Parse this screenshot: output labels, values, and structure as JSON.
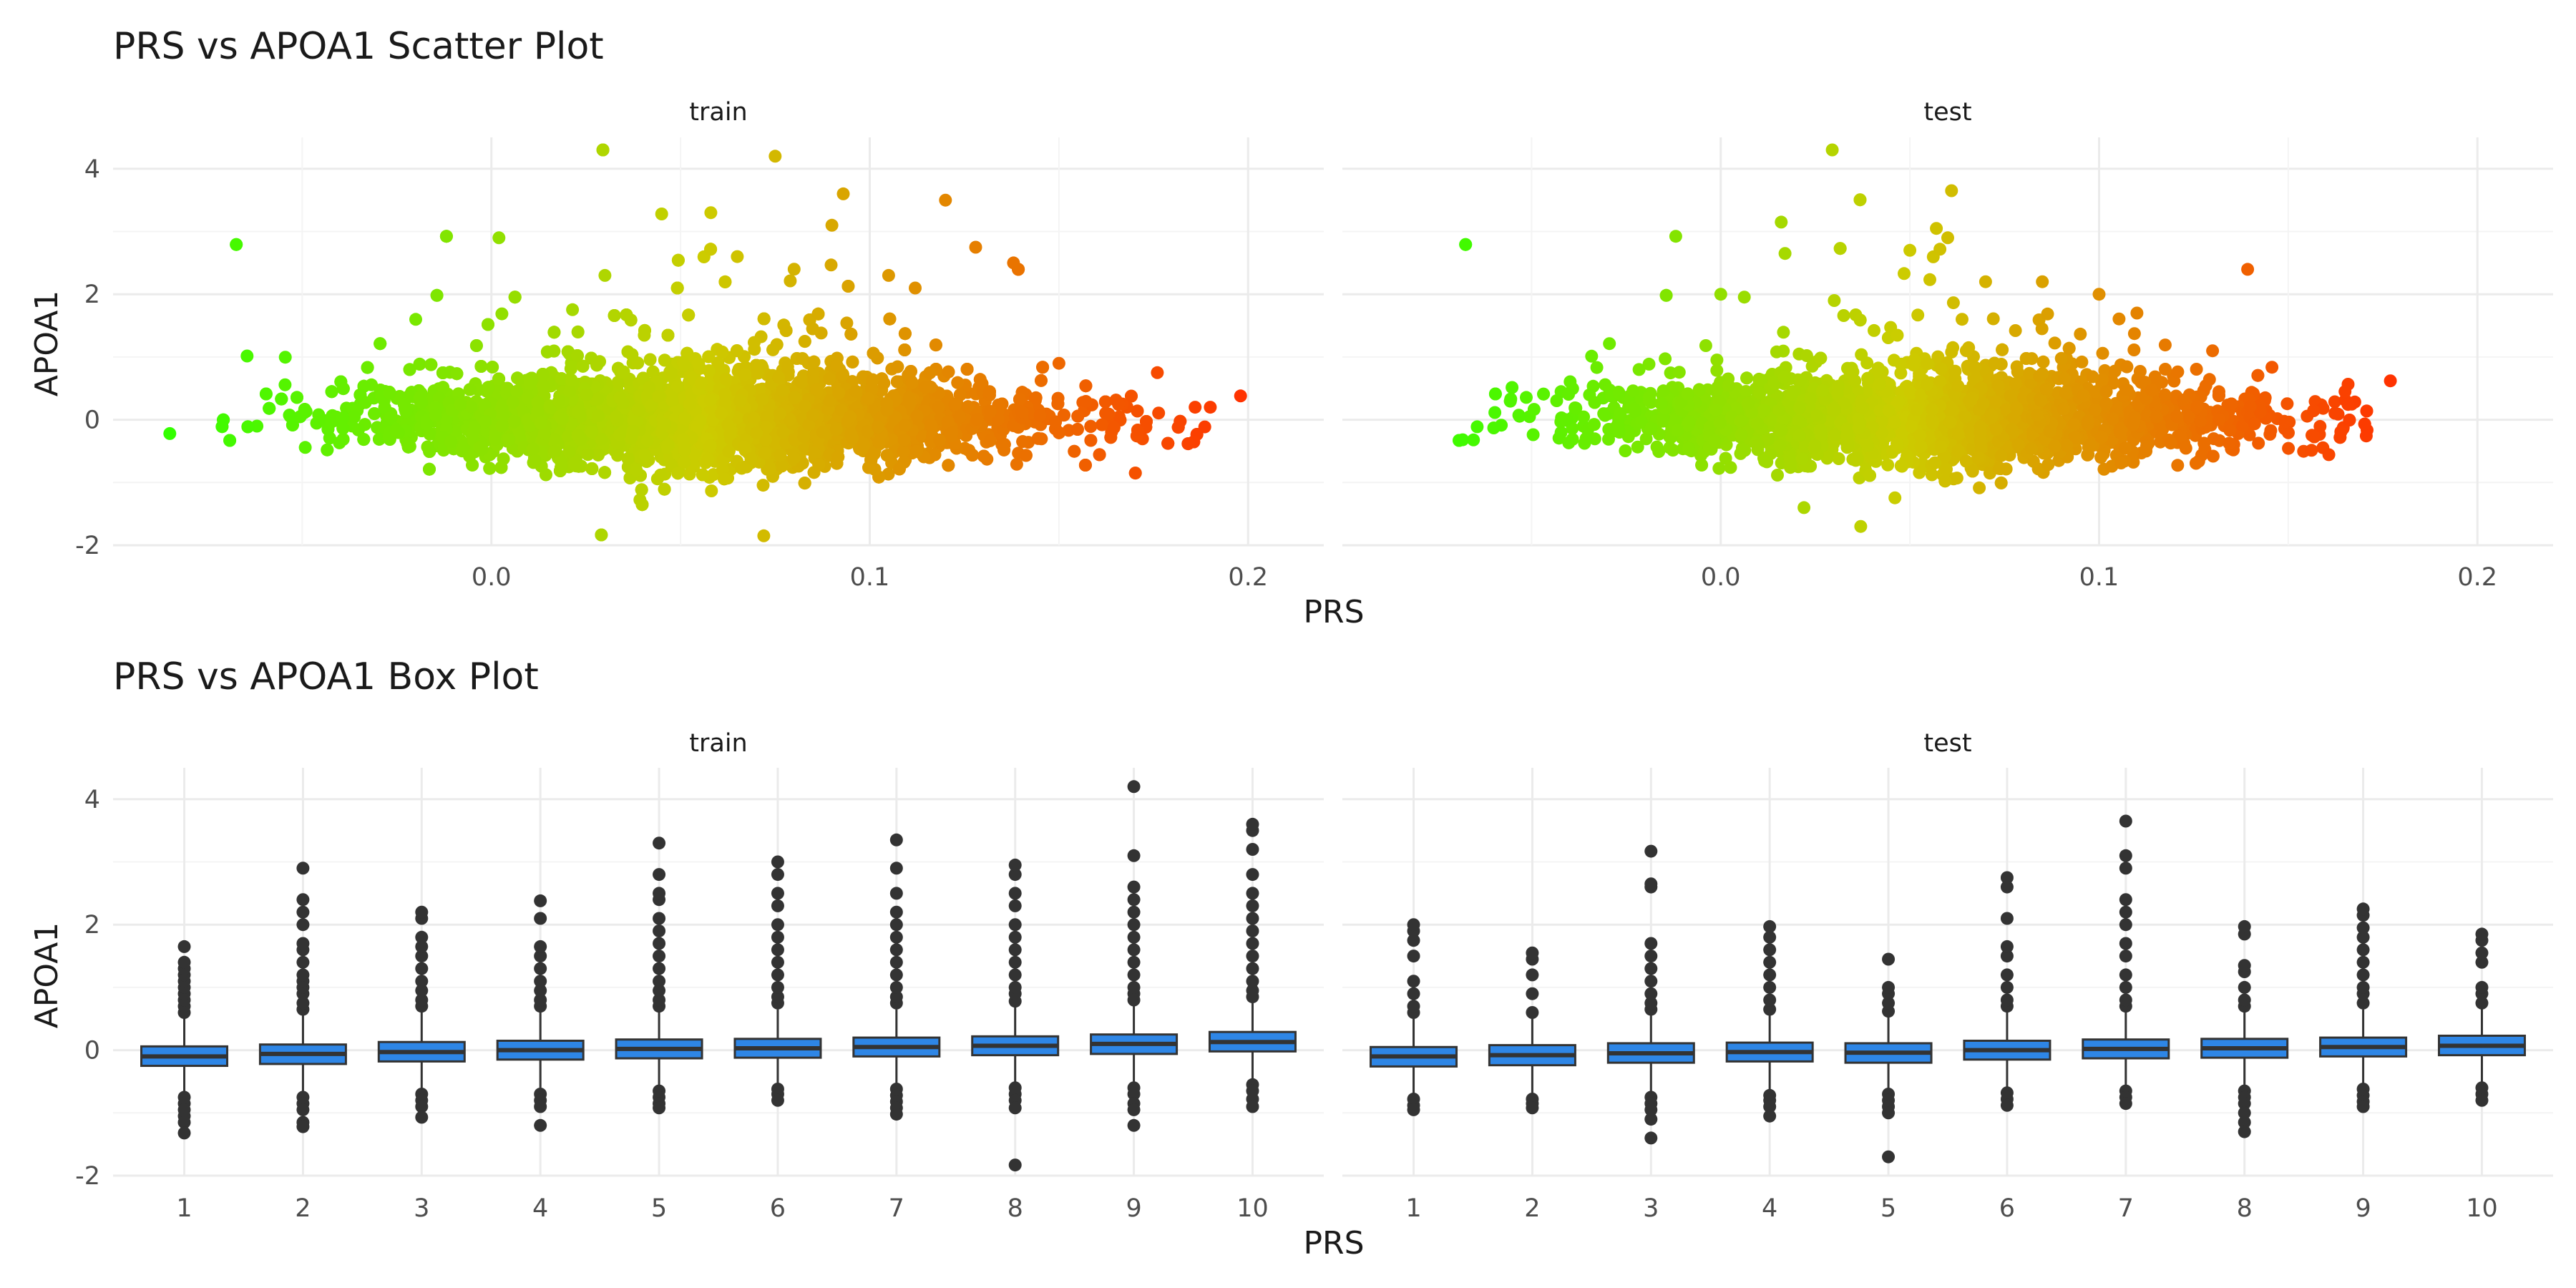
{
  "chart_data": [
    {
      "type": "scatter",
      "title": "PRS vs APOA1 Scatter Plot",
      "xlabel": "PRS",
      "ylabel": "APOA1",
      "xlim": [
        -0.1,
        0.22
      ],
      "ylim": [
        -2.0,
        4.5
      ],
      "xticks": [
        "0.0",
        "0.1",
        "0.2"
      ],
      "xtick_values": [
        0.0,
        0.1,
        0.2
      ],
      "yticks": [
        "-2",
        "0",
        "2",
        "4"
      ],
      "ytick_values": [
        -2,
        0,
        2,
        4
      ],
      "color_scale": [
        "#33ff00",
        "#cccc00",
        "#ff3300"
      ],
      "grid": true,
      "legend": "none",
      "panels": [
        {
          "name": "train",
          "x_range": [
            -0.085,
            0.198
          ],
          "approx_count": 6000,
          "outliers": [
            {
              "x": -0.085,
              "y": -0.22
            },
            {
              "x": 0.198,
              "y": 0.38
            },
            {
              "x": 0.19,
              "y": 0.2
            },
            {
              "x": 0.186,
              "y": 0.2
            },
            {
              "x": 0.075,
              "y": 4.2
            },
            {
              "x": 0.093,
              "y": 3.6
            },
            {
              "x": 0.12,
              "y": 3.5
            },
            {
              "x": 0.058,
              "y": 3.3
            },
            {
              "x": 0.045,
              "y": 3.28
            },
            {
              "x": 0.002,
              "y": 2.9
            },
            {
              "x": 0.09,
              "y": 3.1
            },
            {
              "x": 0.138,
              "y": 2.5
            },
            {
              "x": 0.128,
              "y": 2.75
            },
            {
              "x": 0.105,
              "y": 2.3
            },
            {
              "x": 0.072,
              "y": -1.85
            },
            {
              "x": -0.02,
              "y": 1.6
            },
            {
              "x": 0.112,
              "y": 2.1
            },
            {
              "x": 0.03,
              "y": 2.3
            },
            {
              "x": 0.065,
              "y": 2.6
            },
            {
              "x": 0.08,
              "y": 2.4
            },
            {
              "x": 0.176,
              "y": 0.75
            },
            {
              "x": 0.15,
              "y": 0.9
            }
          ]
        },
        {
          "name": "test",
          "x_range": [
            -0.08,
            0.177
          ],
          "approx_count": 2500,
          "outliers": [
            {
              "x": -0.06,
              "y": -0.13
            },
            {
              "x": 0.177,
              "y": 0.62
            },
            {
              "x": 0.061,
              "y": 3.65
            },
            {
              "x": 0.016,
              "y": 3.15
            },
            {
              "x": 0.057,
              "y": 3.05
            },
            {
              "x": 0.017,
              "y": 2.65
            },
            {
              "x": 0.05,
              "y": 2.7
            },
            {
              "x": 0.06,
              "y": 2.9
            },
            {
              "x": 0.0,
              "y": 2.0
            },
            {
              "x": 0.037,
              "y": -1.7
            },
            {
              "x": 0.07,
              "y": 2.2
            },
            {
              "x": 0.085,
              "y": 2.2
            },
            {
              "x": 0.1,
              "y": 2.0
            },
            {
              "x": 0.11,
              "y": 1.7
            },
            {
              "x": 0.165,
              "y": 0.45
            },
            {
              "x": 0.13,
              "y": 1.1
            },
            {
              "x": 0.03,
              "y": 1.9
            },
            {
              "x": 0.022,
              "y": -1.4
            }
          ]
        }
      ]
    },
    {
      "type": "box",
      "title": "PRS vs APOA1 Box Plot",
      "xlabel": "PRS",
      "ylabel": "APOA1",
      "categories": [
        "1",
        "2",
        "3",
        "4",
        "5",
        "6",
        "7",
        "8",
        "9",
        "10"
      ],
      "ylim": [
        -2.0,
        4.5
      ],
      "yticks": [
        "-2",
        "0",
        "2",
        "4"
      ],
      "ytick_values": [
        -2,
        0,
        2,
        4
      ],
      "box_color": "#2e86e6",
      "outlier_color": "#333333",
      "grid": true,
      "legend": "none",
      "panels": [
        {
          "name": "train",
          "boxes": [
            {
              "q1": -0.25,
              "median": -0.1,
              "q3": 0.06,
              "whisker_low": -0.7,
              "whisker_high": 0.55,
              "outliers_high": [
                0.6,
                0.7,
                0.8,
                0.9,
                1.0,
                1.1,
                1.2,
                1.3,
                1.4,
                1.65
              ],
              "outliers_low": [
                -0.75,
                -0.85,
                -0.95,
                -1.05,
                -1.15,
                -1.32
              ]
            },
            {
              "q1": -0.22,
              "median": -0.06,
              "q3": 0.09,
              "whisker_low": -0.68,
              "whisker_high": 0.58,
              "outliers_high": [
                0.65,
                0.75,
                0.9,
                1.0,
                1.1,
                1.2,
                1.4,
                1.6,
                1.7,
                2.0,
                2.2,
                2.4,
                2.9
              ],
              "outliers_low": [
                -0.75,
                -0.85,
                -0.95,
                -1.15,
                -1.22
              ]
            },
            {
              "q1": -0.18,
              "median": -0.03,
              "q3": 0.13,
              "whisker_low": -0.62,
              "whisker_high": 0.6,
              "outliers_high": [
                0.7,
                0.8,
                0.95,
                1.1,
                1.3,
                1.5,
                1.65,
                1.8,
                2.1,
                2.2
              ],
              "outliers_low": [
                -0.7,
                -0.8,
                -0.9,
                -1.07
              ]
            },
            {
              "q1": -0.15,
              "median": 0.0,
              "q3": 0.15,
              "whisker_low": -0.6,
              "whisker_high": 0.6,
              "outliers_high": [
                0.7,
                0.8,
                0.95,
                1.1,
                1.3,
                1.5,
                1.65,
                2.1,
                2.38
              ],
              "outliers_low": [
                -0.7,
                -0.8,
                -0.9,
                -1.2
              ]
            },
            {
              "q1": -0.13,
              "median": 0.02,
              "q3": 0.17,
              "whisker_low": -0.58,
              "whisker_high": 0.62,
              "outliers_high": [
                0.7,
                0.8,
                0.95,
                1.1,
                1.3,
                1.5,
                1.7,
                1.9,
                2.1,
                2.4,
                2.5,
                2.8,
                3.3
              ],
              "outliers_low": [
                -0.65,
                -0.75,
                -0.85,
                -0.92
              ]
            },
            {
              "q1": -0.12,
              "median": 0.03,
              "q3": 0.18,
              "whisker_low": -0.55,
              "whisker_high": 0.65,
              "outliers_high": [
                0.75,
                0.85,
                1.0,
                1.2,
                1.4,
                1.6,
                1.8,
                2.0,
                2.3,
                2.5,
                2.8,
                3.0
              ],
              "outliers_low": [
                -0.62,
                -0.7,
                -0.8
              ]
            },
            {
              "q1": -0.1,
              "median": 0.05,
              "q3": 0.2,
              "whisker_low": -0.55,
              "whisker_high": 0.65,
              "outliers_high": [
                0.75,
                0.85,
                1.0,
                1.2,
                1.4,
                1.6,
                1.8,
                2.0,
                2.2,
                2.5,
                2.9,
                3.35
              ],
              "outliers_low": [
                -0.62,
                -0.72,
                -0.82,
                -0.92,
                -1.02
              ]
            },
            {
              "q1": -0.08,
              "median": 0.07,
              "q3": 0.22,
              "whisker_low": -0.53,
              "whisker_high": 0.68,
              "outliers_high": [
                0.78,
                0.9,
                1.0,
                1.2,
                1.4,
                1.6,
                1.8,
                2.0,
                2.3,
                2.5,
                2.8,
                2.95
              ],
              "outliers_low": [
                -0.6,
                -0.7,
                -0.8,
                -0.92,
                -1.83
              ]
            },
            {
              "q1": -0.06,
              "median": 0.1,
              "q3": 0.25,
              "whisker_low": -0.5,
              "whisker_high": 0.72,
              "outliers_high": [
                0.8,
                0.9,
                1.0,
                1.2,
                1.4,
                1.6,
                1.8,
                2.0,
                2.2,
                2.4,
                2.6,
                3.1,
                4.2
              ],
              "outliers_low": [
                -0.6,
                -0.7,
                -0.85,
                -0.95,
                -1.2
              ]
            },
            {
              "q1": -0.02,
              "median": 0.13,
              "q3": 0.29,
              "whisker_low": -0.45,
              "whisker_high": 0.76,
              "outliers_high": [
                0.85,
                0.95,
                1.1,
                1.3,
                1.5,
                1.7,
                1.9,
                2.1,
                2.3,
                2.5,
                2.8,
                3.2,
                3.5,
                3.6
              ],
              "outliers_low": [
                -0.55,
                -0.65,
                -0.78,
                -0.9
              ]
            }
          ]
        },
        {
          "name": "test",
          "boxes": [
            {
              "q1": -0.26,
              "median": -0.1,
              "q3": 0.05,
              "whisker_low": -0.7,
              "whisker_high": 0.5,
              "outliers_high": [
                0.6,
                0.7,
                0.9,
                1.1,
                1.5,
                1.75,
                1.9,
                2.0
              ],
              "outliers_low": [
                -0.78,
                -0.88,
                -0.95
              ]
            },
            {
              "q1": -0.24,
              "median": -0.08,
              "q3": 0.08,
              "whisker_low": -0.7,
              "whisker_high": 0.5,
              "outliers_high": [
                0.6,
                0.9,
                1.2,
                1.45,
                1.55
              ],
              "outliers_low": [
                -0.78,
                -0.85,
                -0.92
              ]
            },
            {
              "q1": -0.2,
              "median": -0.05,
              "q3": 0.11,
              "whisker_low": -0.65,
              "whisker_high": 0.55,
              "outliers_high": [
                0.65,
                0.75,
                0.9,
                1.1,
                1.3,
                1.5,
                1.7,
                2.6,
                2.65,
                3.17
              ],
              "outliers_low": [
                -0.75,
                -0.85,
                -0.95,
                -1.1,
                -1.4
              ]
            },
            {
              "q1": -0.18,
              "median": -0.03,
              "q3": 0.12,
              "whisker_low": -0.62,
              "whisker_high": 0.55,
              "outliers_high": [
                0.65,
                0.8,
                1.0,
                1.2,
                1.4,
                1.6,
                1.8,
                1.97
              ],
              "outliers_low": [
                -0.72,
                -0.8,
                -0.9,
                -1.05
              ]
            },
            {
              "q1": -0.2,
              "median": -0.04,
              "q3": 0.11,
              "whisker_low": -0.63,
              "whisker_high": 0.55,
              "outliers_high": [
                0.62,
                0.75,
                0.9,
                1.0,
                1.45
              ],
              "outliers_low": [
                -0.7,
                -0.8,
                -0.9,
                -1.0,
                -1.7
              ]
            },
            {
              "q1": -0.15,
              "median": 0.0,
              "q3": 0.15,
              "whisker_low": -0.6,
              "whisker_high": 0.6,
              "outliers_high": [
                0.7,
                0.8,
                1.0,
                1.2,
                1.5,
                1.65,
                2.1,
                2.6,
                2.75
              ],
              "outliers_low": [
                -0.68,
                -0.78,
                -0.88
              ]
            },
            {
              "q1": -0.13,
              "median": 0.02,
              "q3": 0.17,
              "whisker_low": -0.58,
              "whisker_high": 0.62,
              "outliers_high": [
                0.7,
                0.8,
                1.0,
                1.2,
                1.5,
                1.7,
                2.0,
                2.2,
                2.4,
                2.9,
                3.1,
                3.65
              ],
              "outliers_low": [
                -0.65,
                -0.75,
                -0.85
              ]
            },
            {
              "q1": -0.12,
              "median": 0.03,
              "q3": 0.18,
              "whisker_low": -0.57,
              "whisker_high": 0.62,
              "outliers_high": [
                0.7,
                0.8,
                1.0,
                1.25,
                1.35,
                1.85,
                1.97
              ],
              "outliers_low": [
                -0.65,
                -0.75,
                -0.85,
                -1.0,
                -1.15,
                -1.3
              ]
            },
            {
              "q1": -0.1,
              "median": 0.05,
              "q3": 0.2,
              "whisker_low": -0.55,
              "whisker_high": 0.65,
              "outliers_high": [
                0.75,
                0.9,
                1.0,
                1.2,
                1.4,
                1.6,
                1.8,
                1.95,
                2.15,
                2.25
              ],
              "outliers_low": [
                -0.62,
                -0.72,
                -0.82,
                -0.9
              ]
            },
            {
              "q1": -0.08,
              "median": 0.07,
              "q3": 0.23,
              "whisker_low": -0.52,
              "whisker_high": 0.68,
              "outliers_high": [
                0.75,
                0.9,
                1.0,
                1.4,
                1.55,
                1.75,
                1.85
              ],
              "outliers_low": [
                -0.6,
                -0.7,
                -0.8
              ]
            }
          ]
        }
      ]
    }
  ]
}
